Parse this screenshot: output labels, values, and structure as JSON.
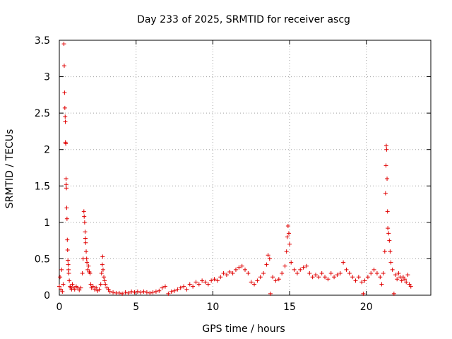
{
  "chart_data": {
    "type": "scatter",
    "title": "Day 233 of 2025, SRMTID for receiver ascg",
    "xlabel": "GPS time / hours",
    "ylabel": "SRMTID / TECUs",
    "xlim": [
      0,
      24.2
    ],
    "ylim": [
      0,
      3.5
    ],
    "xticks": [
      0,
      5,
      10,
      15,
      20
    ],
    "yticks": [
      0,
      0.5,
      1,
      1.5,
      2,
      2.5,
      3,
      3.5
    ],
    "xtick_labels": [
      "0",
      "5",
      "10",
      "15",
      "20"
    ],
    "ytick_labels": [
      "0",
      "0.5",
      "1",
      "1.5",
      "2",
      "2.5",
      "3",
      "3.5"
    ],
    "grid": true,
    "marker": "+",
    "color": "#e00000",
    "series": [
      {
        "name": "SRMTID",
        "points": [
          [
            0.0,
            0.12
          ],
          [
            0.05,
            0.25
          ],
          [
            0.1,
            0.08
          ],
          [
            0.15,
            0.35
          ],
          [
            0.2,
            0.05
          ],
          [
            0.25,
            0.15
          ],
          [
            0.3,
            3.45
          ],
          [
            0.32,
            3.15
          ],
          [
            0.34,
            2.78
          ],
          [
            0.36,
            2.57
          ],
          [
            0.38,
            2.45
          ],
          [
            0.39,
            2.38
          ],
          [
            0.4,
            2.1
          ],
          [
            0.42,
            2.08
          ],
          [
            0.44,
            1.6
          ],
          [
            0.45,
            1.52
          ],
          [
            0.46,
            1.47
          ],
          [
            0.48,
            1.2
          ],
          [
            0.5,
            1.05
          ],
          [
            0.52,
            0.76
          ],
          [
            0.54,
            0.62
          ],
          [
            0.56,
            0.48
          ],
          [
            0.58,
            0.42
          ],
          [
            0.6,
            0.35
          ],
          [
            0.62,
            0.3
          ],
          [
            0.65,
            0.2
          ],
          [
            0.7,
            0.12
          ],
          [
            0.75,
            0.1
          ],
          [
            0.8,
            0.08
          ],
          [
            0.85,
            0.15
          ],
          [
            0.9,
            0.1
          ],
          [
            1.0,
            0.08
          ],
          [
            1.1,
            0.12
          ],
          [
            1.2,
            0.1
          ],
          [
            1.3,
            0.07
          ],
          [
            1.4,
            0.1
          ],
          [
            1.5,
            0.3
          ],
          [
            1.55,
            0.5
          ],
          [
            1.6,
            1.15
          ],
          [
            1.62,
            1.08
          ],
          [
            1.65,
            1.0
          ],
          [
            1.68,
            0.87
          ],
          [
            1.7,
            0.78
          ],
          [
            1.72,
            0.72
          ],
          [
            1.75,
            0.6
          ],
          [
            1.78,
            0.5
          ],
          [
            1.8,
            0.45
          ],
          [
            1.85,
            0.35
          ],
          [
            1.9,
            0.4
          ],
          [
            1.95,
            0.32
          ],
          [
            2.0,
            0.3
          ],
          [
            2.05,
            0.15
          ],
          [
            2.1,
            0.1
          ],
          [
            2.2,
            0.12
          ],
          [
            2.3,
            0.08
          ],
          [
            2.4,
            0.1
          ],
          [
            2.5,
            0.06
          ],
          [
            2.6,
            0.08
          ],
          [
            2.7,
            0.15
          ],
          [
            2.75,
            0.3
          ],
          [
            2.8,
            0.42
          ],
          [
            2.82,
            0.53
          ],
          [
            2.85,
            0.35
          ],
          [
            2.9,
            0.25
          ],
          [
            2.95,
            0.2
          ],
          [
            3.0,
            0.15
          ],
          [
            3.1,
            0.1
          ],
          [
            3.2,
            0.08
          ],
          [
            3.3,
            0.05
          ],
          [
            3.5,
            0.04
          ],
          [
            3.7,
            0.03
          ],
          [
            3.9,
            0.03
          ],
          [
            4.1,
            0.02
          ],
          [
            4.3,
            0.04
          ],
          [
            4.5,
            0.03
          ],
          [
            4.7,
            0.05
          ],
          [
            4.9,
            0.04
          ],
          [
            5.1,
            0.05
          ],
          [
            5.3,
            0.04
          ],
          [
            5.5,
            0.05
          ],
          [
            5.7,
            0.04
          ],
          [
            5.9,
            0.03
          ],
          [
            6.1,
            0.04
          ],
          [
            6.3,
            0.05
          ],
          [
            6.5,
            0.06
          ],
          [
            6.7,
            0.1
          ],
          [
            6.9,
            0.12
          ],
          [
            7.1,
            0.02
          ],
          [
            7.3,
            0.05
          ],
          [
            7.5,
            0.06
          ],
          [
            7.7,
            0.08
          ],
          [
            7.9,
            0.1
          ],
          [
            8.1,
            0.12
          ],
          [
            8.3,
            0.08
          ],
          [
            8.5,
            0.15
          ],
          [
            8.7,
            0.12
          ],
          [
            8.9,
            0.18
          ],
          [
            9.1,
            0.15
          ],
          [
            9.3,
            0.2
          ],
          [
            9.5,
            0.18
          ],
          [
            9.7,
            0.15
          ],
          [
            9.9,
            0.2
          ],
          [
            10.1,
            0.22
          ],
          [
            10.3,
            0.2
          ],
          [
            10.5,
            0.25
          ],
          [
            10.7,
            0.3
          ],
          [
            10.9,
            0.28
          ],
          [
            11.1,
            0.32
          ],
          [
            11.3,
            0.3
          ],
          [
            11.5,
            0.35
          ],
          [
            11.7,
            0.38
          ],
          [
            11.9,
            0.4
          ],
          [
            12.1,
            0.35
          ],
          [
            12.3,
            0.3
          ],
          [
            12.5,
            0.18
          ],
          [
            12.7,
            0.15
          ],
          [
            12.9,
            0.2
          ],
          [
            13.1,
            0.25
          ],
          [
            13.3,
            0.3
          ],
          [
            13.5,
            0.42
          ],
          [
            13.6,
            0.55
          ],
          [
            13.7,
            0.5
          ],
          [
            13.75,
            0.02
          ],
          [
            13.9,
            0.25
          ],
          [
            14.1,
            0.2
          ],
          [
            14.3,
            0.22
          ],
          [
            14.5,
            0.3
          ],
          [
            14.7,
            0.4
          ],
          [
            14.8,
            0.6
          ],
          [
            14.85,
            0.8
          ],
          [
            14.9,
            0.95
          ],
          [
            14.95,
            0.85
          ],
          [
            15.0,
            0.7
          ],
          [
            15.1,
            0.45
          ],
          [
            15.3,
            0.35
          ],
          [
            15.5,
            0.3
          ],
          [
            15.7,
            0.35
          ],
          [
            15.9,
            0.38
          ],
          [
            16.1,
            0.4
          ],
          [
            16.3,
            0.3
          ],
          [
            16.5,
            0.25
          ],
          [
            16.7,
            0.28
          ],
          [
            16.9,
            0.25
          ],
          [
            17.1,
            0.3
          ],
          [
            17.3,
            0.25
          ],
          [
            17.5,
            0.22
          ],
          [
            17.7,
            0.3
          ],
          [
            17.9,
            0.25
          ],
          [
            18.1,
            0.28
          ],
          [
            18.3,
            0.3
          ],
          [
            18.5,
            0.45
          ],
          [
            18.7,
            0.35
          ],
          [
            18.9,
            0.3
          ],
          [
            19.1,
            0.25
          ],
          [
            19.3,
            0.2
          ],
          [
            19.5,
            0.25
          ],
          [
            19.7,
            0.18
          ],
          [
            19.8,
            0.02
          ],
          [
            19.9,
            0.2
          ],
          [
            20.1,
            0.25
          ],
          [
            20.3,
            0.3
          ],
          [
            20.5,
            0.35
          ],
          [
            20.7,
            0.3
          ],
          [
            20.9,
            0.25
          ],
          [
            21.0,
            0.15
          ],
          [
            21.1,
            0.3
          ],
          [
            21.2,
            0.6
          ],
          [
            21.25,
            1.4
          ],
          [
            21.28,
            1.78
          ],
          [
            21.3,
            2.05
          ],
          [
            21.32,
            2.0
          ],
          [
            21.35,
            1.6
          ],
          [
            21.38,
            1.15
          ],
          [
            21.4,
            0.92
          ],
          [
            21.45,
            0.85
          ],
          [
            21.5,
            0.75
          ],
          [
            21.55,
            0.6
          ],
          [
            21.6,
            0.45
          ],
          [
            21.7,
            0.35
          ],
          [
            21.8,
            0.02
          ],
          [
            21.9,
            0.28
          ],
          [
            22.0,
            0.22
          ],
          [
            22.1,
            0.3
          ],
          [
            22.2,
            0.25
          ],
          [
            22.3,
            0.2
          ],
          [
            22.4,
            0.25
          ],
          [
            22.5,
            0.22
          ],
          [
            22.6,
            0.18
          ],
          [
            22.7,
            0.28
          ],
          [
            22.8,
            0.15
          ],
          [
            22.9,
            0.12
          ]
        ]
      }
    ]
  }
}
